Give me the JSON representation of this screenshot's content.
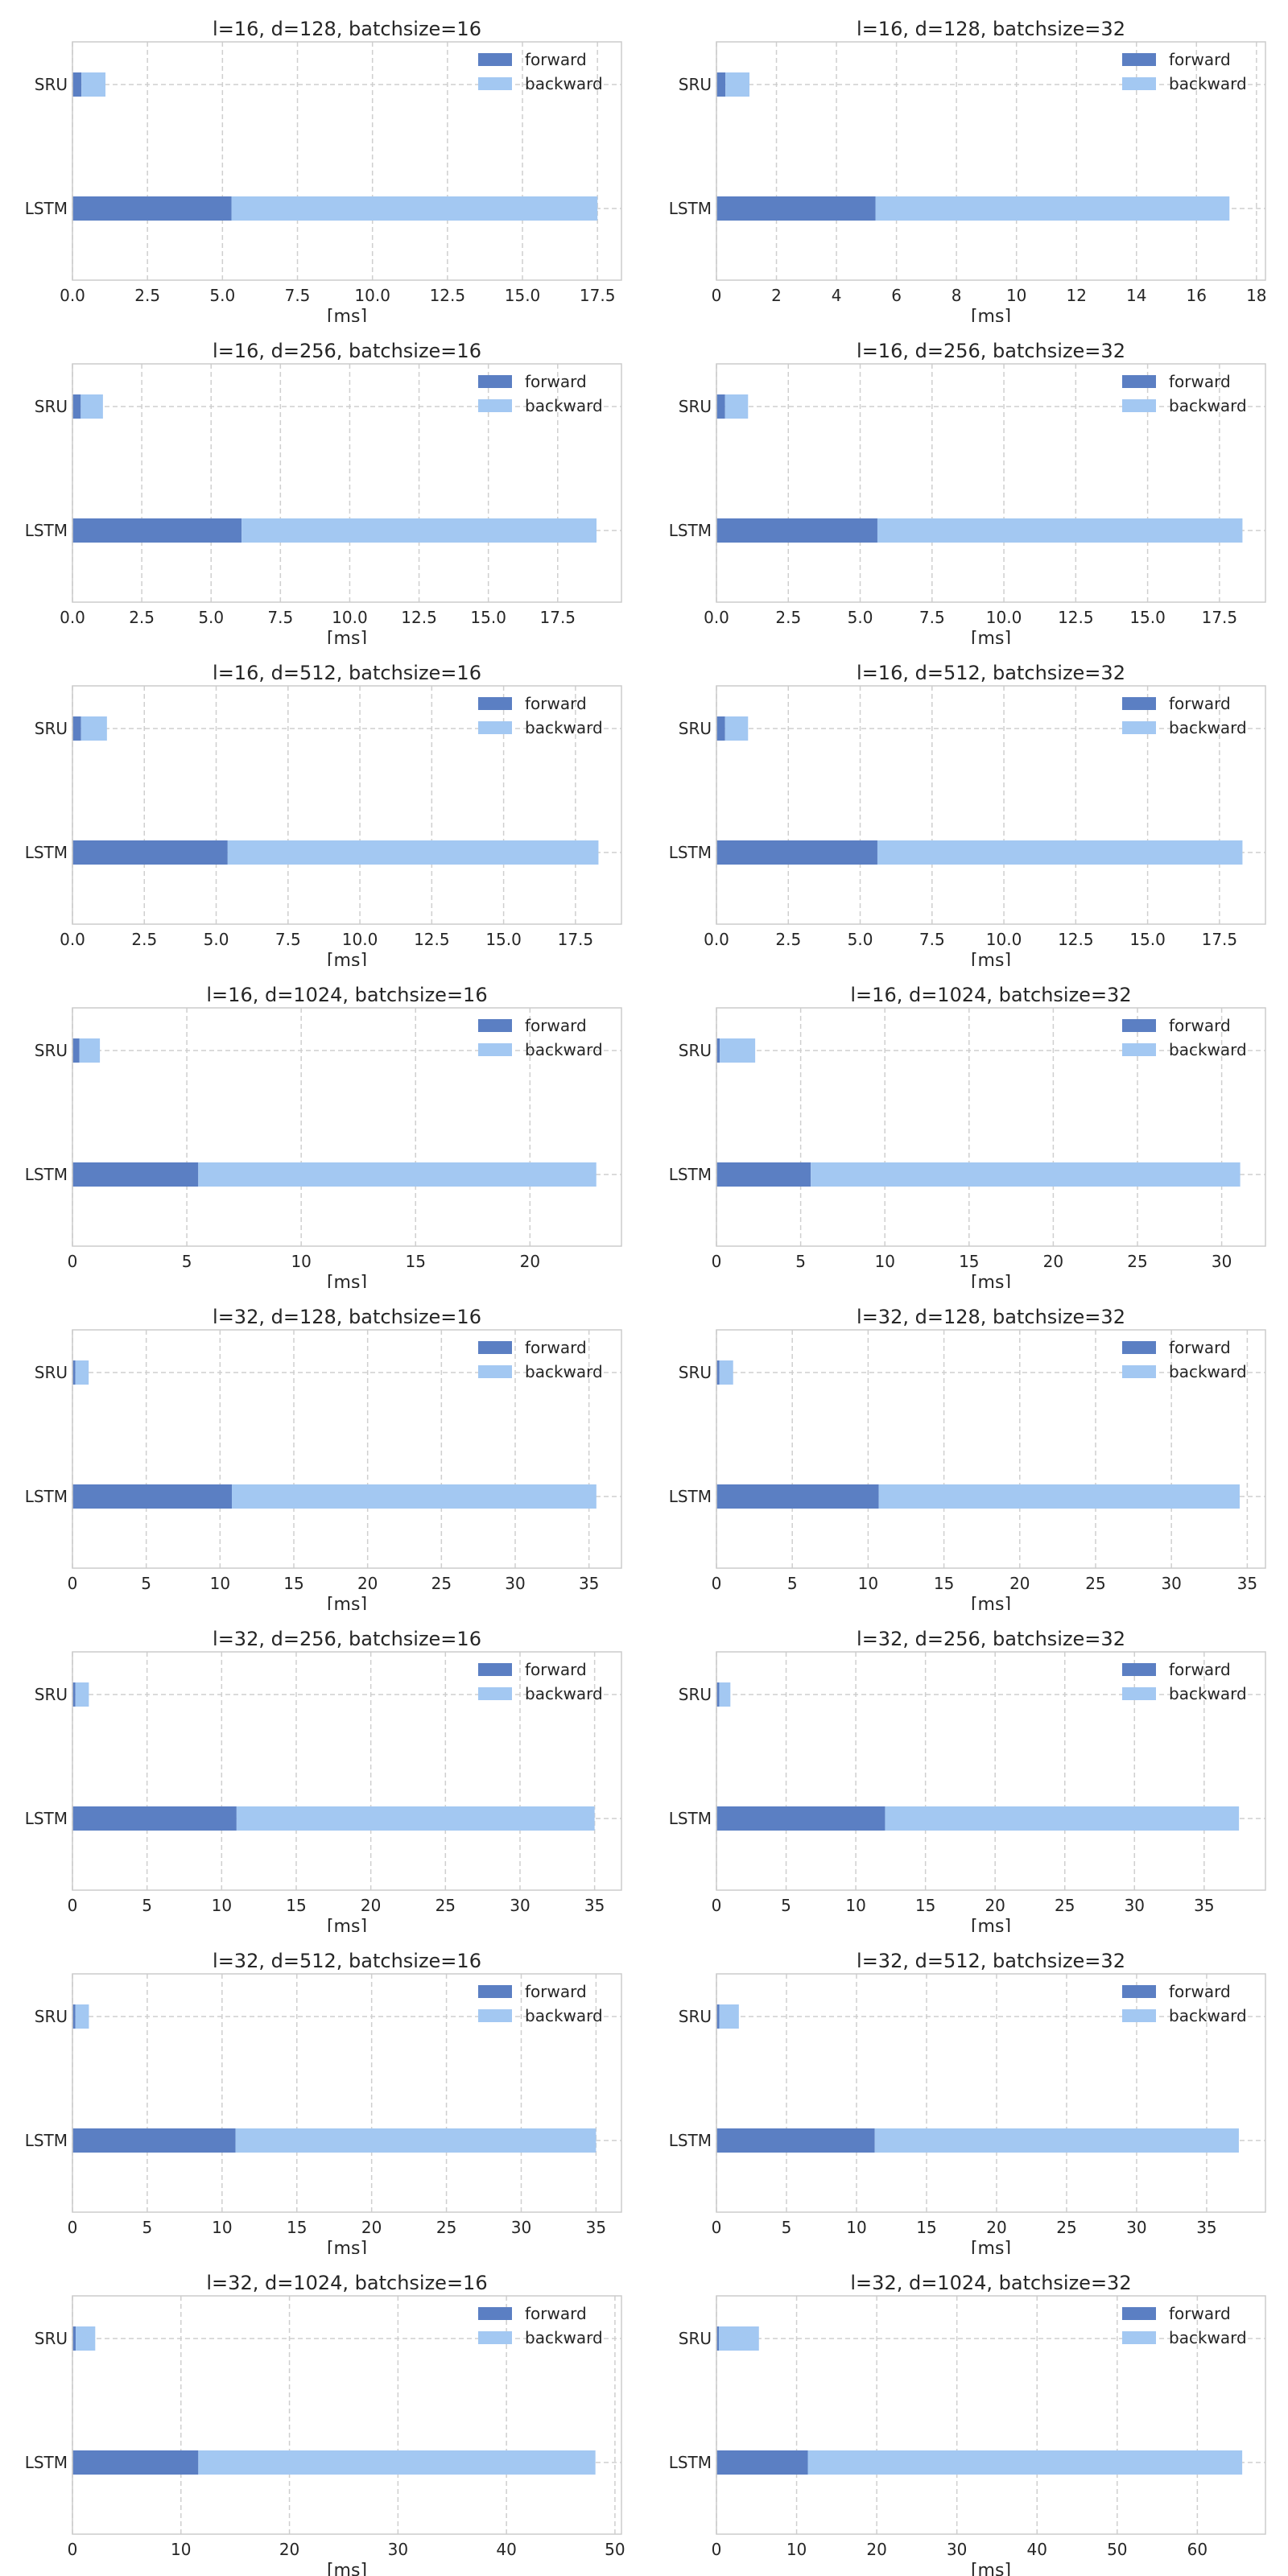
{
  "colors": {
    "forward": "#5b7fc3",
    "backward": "#a3c8f2"
  },
  "chart_data": [
    {
      "type": "bar",
      "orientation": "horizontal",
      "stacked": true,
      "title": "l=16, d=128, batchsize=16",
      "categories": [
        "SRU",
        "LSTM"
      ],
      "series": [
        {
          "name": "forward",
          "values": [
            0.3,
            5.3
          ]
        },
        {
          "name": "backward",
          "values": [
            0.8,
            12.2
          ]
        }
      ],
      "xlabel": "[ms]",
      "ticks": [
        0.0,
        2.5,
        5.0,
        7.5,
        10.0,
        12.5,
        15.0,
        17.5
      ],
      "tick_labels": [
        "0.0",
        "2.5",
        "5.0",
        "7.5",
        "10.0",
        "12.5",
        "15.0",
        "17.5"
      ],
      "xlim": [
        0,
        18.3
      ],
      "legend": "top-right"
    },
    {
      "type": "bar",
      "orientation": "horizontal",
      "stacked": true,
      "title": "l=16, d=128, batchsize=32",
      "categories": [
        "SRU",
        "LSTM"
      ],
      "series": [
        {
          "name": "forward",
          "values": [
            0.3,
            5.3
          ]
        },
        {
          "name": "backward",
          "values": [
            0.8,
            11.8
          ]
        }
      ],
      "xlabel": "[ms]",
      "ticks": [
        0,
        2,
        4,
        6,
        8,
        10,
        12,
        14,
        16,
        18
      ],
      "tick_labels": [
        "0",
        "2",
        "4",
        "6",
        "8",
        "10",
        "12",
        "14",
        "16",
        "18"
      ],
      "xlim": [
        0,
        18.3
      ],
      "legend": "top-right"
    },
    {
      "type": "bar",
      "orientation": "horizontal",
      "stacked": true,
      "title": "l=16, d=256, batchsize=16",
      "categories": [
        "SRU",
        "LSTM"
      ],
      "series": [
        {
          "name": "forward",
          "values": [
            0.3,
            6.1
          ]
        },
        {
          "name": "backward",
          "values": [
            0.8,
            12.8
          ]
        }
      ],
      "xlabel": "[ms]",
      "ticks": [
        0.0,
        2.5,
        5.0,
        7.5,
        10.0,
        12.5,
        15.0,
        17.5
      ],
      "tick_labels": [
        "0.0",
        "2.5",
        "5.0",
        "7.5",
        "10.0",
        "12.5",
        "15.0",
        "17.5"
      ],
      "xlim": [
        0,
        19.8
      ],
      "legend": "top-right"
    },
    {
      "type": "bar",
      "orientation": "horizontal",
      "stacked": true,
      "title": "l=16, d=256, batchsize=32",
      "categories": [
        "SRU",
        "LSTM"
      ],
      "series": [
        {
          "name": "forward",
          "values": [
            0.3,
            5.6
          ]
        },
        {
          "name": "backward",
          "values": [
            0.8,
            12.7
          ]
        }
      ],
      "xlabel": "[ms]",
      "ticks": [
        0.0,
        2.5,
        5.0,
        7.5,
        10.0,
        12.5,
        15.0,
        17.5
      ],
      "tick_labels": [
        "0.0",
        "2.5",
        "5.0",
        "7.5",
        "10.0",
        "12.5",
        "15.0",
        "17.5"
      ],
      "xlim": [
        0,
        19.1
      ],
      "legend": "top-right"
    },
    {
      "type": "bar",
      "orientation": "horizontal",
      "stacked": true,
      "title": "l=16, d=512, batchsize=16",
      "categories": [
        "SRU",
        "LSTM"
      ],
      "series": [
        {
          "name": "forward",
          "values": [
            0.3,
            5.4
          ]
        },
        {
          "name": "backward",
          "values": [
            0.9,
            12.9
          ]
        }
      ],
      "xlabel": "[ms]",
      "ticks": [
        0.0,
        2.5,
        5.0,
        7.5,
        10.0,
        12.5,
        15.0,
        17.5
      ],
      "tick_labels": [
        "0.0",
        "2.5",
        "5.0",
        "7.5",
        "10.0",
        "12.5",
        "15.0",
        "17.5"
      ],
      "xlim": [
        0,
        19.1
      ],
      "legend": "top-right"
    },
    {
      "type": "bar",
      "orientation": "horizontal",
      "stacked": true,
      "title": "l=16, d=512, batchsize=32",
      "categories": [
        "SRU",
        "LSTM"
      ],
      "series": [
        {
          "name": "forward",
          "values": [
            0.3,
            5.6
          ]
        },
        {
          "name": "backward",
          "values": [
            0.8,
            12.7
          ]
        }
      ],
      "xlabel": "[ms]",
      "ticks": [
        0.0,
        2.5,
        5.0,
        7.5,
        10.0,
        12.5,
        15.0,
        17.5
      ],
      "tick_labels": [
        "0.0",
        "2.5",
        "5.0",
        "7.5",
        "10.0",
        "12.5",
        "15.0",
        "17.5"
      ],
      "xlim": [
        0,
        19.1
      ],
      "legend": "top-right"
    },
    {
      "type": "bar",
      "orientation": "horizontal",
      "stacked": true,
      "title": "l=16, d=1024, batchsize=16",
      "categories": [
        "SRU",
        "LSTM"
      ],
      "series": [
        {
          "name": "forward",
          "values": [
            0.3,
            5.5
          ]
        },
        {
          "name": "backward",
          "values": [
            0.9,
            17.4
          ]
        }
      ],
      "xlabel": "[ms]",
      "ticks": [
        0,
        5,
        10,
        15,
        20
      ],
      "tick_labels": [
        "0",
        "5",
        "10",
        "15",
        "20"
      ],
      "xlim": [
        0,
        24.0
      ],
      "legend": "top-right"
    },
    {
      "type": "bar",
      "orientation": "horizontal",
      "stacked": true,
      "title": "l=16, d=1024, batchsize=32",
      "categories": [
        "SRU",
        "LSTM"
      ],
      "series": [
        {
          "name": "forward",
          "values": [
            0.2,
            5.6
          ]
        },
        {
          "name": "backward",
          "values": [
            2.1,
            25.5
          ]
        }
      ],
      "xlabel": "[ms]",
      "ticks": [
        0,
        5,
        10,
        15,
        20,
        25,
        30
      ],
      "tick_labels": [
        "0",
        "5",
        "10",
        "15",
        "20",
        "25",
        "30"
      ],
      "xlim": [
        0,
        32.6
      ],
      "legend": "top-right"
    },
    {
      "type": "bar",
      "orientation": "horizontal",
      "stacked": true,
      "title": "l=32, d=128, batchsize=16",
      "categories": [
        "SRU",
        "LSTM"
      ],
      "series": [
        {
          "name": "forward",
          "values": [
            0.2,
            10.8
          ]
        },
        {
          "name": "backward",
          "values": [
            0.9,
            24.7
          ]
        }
      ],
      "xlabel": "[ms]",
      "ticks": [
        0,
        5,
        10,
        15,
        20,
        25,
        30,
        35
      ],
      "tick_labels": [
        "0",
        "5",
        "10",
        "15",
        "20",
        "25",
        "30",
        "35"
      ],
      "xlim": [
        0,
        37.2
      ],
      "legend": "top-right"
    },
    {
      "type": "bar",
      "orientation": "horizontal",
      "stacked": true,
      "title": "l=32, d=128, batchsize=32",
      "categories": [
        "SRU",
        "LSTM"
      ],
      "series": [
        {
          "name": "forward",
          "values": [
            0.2,
            10.7
          ]
        },
        {
          "name": "backward",
          "values": [
            0.9,
            23.8
          ]
        }
      ],
      "xlabel": "[ms]",
      "ticks": [
        0,
        5,
        10,
        15,
        20,
        25,
        30,
        35
      ],
      "tick_labels": [
        "0",
        "5",
        "10",
        "15",
        "20",
        "25",
        "30",
        "35"
      ],
      "xlim": [
        0,
        36.2
      ],
      "legend": "top-right"
    },
    {
      "type": "bar",
      "orientation": "horizontal",
      "stacked": true,
      "title": "l=32, d=256, batchsize=16",
      "categories": [
        "SRU",
        "LSTM"
      ],
      "series": [
        {
          "name": "forward",
          "values": [
            0.2,
            11.0
          ]
        },
        {
          "name": "backward",
          "values": [
            0.9,
            24.0
          ]
        }
      ],
      "xlabel": "[ms]",
      "ticks": [
        0,
        5,
        10,
        15,
        20,
        25,
        30,
        35
      ],
      "tick_labels": [
        "0",
        "5",
        "10",
        "15",
        "20",
        "25",
        "30",
        "35"
      ],
      "xlim": [
        0,
        36.8
      ],
      "legend": "top-right"
    },
    {
      "type": "bar",
      "orientation": "horizontal",
      "stacked": true,
      "title": "l=32, d=256, batchsize=32",
      "categories": [
        "SRU",
        "LSTM"
      ],
      "series": [
        {
          "name": "forward",
          "values": [
            0.2,
            12.1
          ]
        },
        {
          "name": "backward",
          "values": [
            0.8,
            25.4
          ]
        }
      ],
      "xlabel": "[ms]",
      "ticks": [
        0,
        5,
        10,
        15,
        20,
        25,
        30,
        35
      ],
      "tick_labels": [
        "0",
        "5",
        "10",
        "15",
        "20",
        "25",
        "30",
        "35"
      ],
      "xlim": [
        0,
        39.4
      ],
      "legend": "top-right"
    },
    {
      "type": "bar",
      "orientation": "horizontal",
      "stacked": true,
      "title": "l=32, d=512, batchsize=16",
      "categories": [
        "SRU",
        "LSTM"
      ],
      "series": [
        {
          "name": "forward",
          "values": [
            0.2,
            10.9
          ]
        },
        {
          "name": "backward",
          "values": [
            0.9,
            24.1
          ]
        }
      ],
      "xlabel": "[ms]",
      "ticks": [
        0,
        5,
        10,
        15,
        20,
        25,
        30,
        35
      ],
      "tick_labels": [
        "0",
        "5",
        "10",
        "15",
        "20",
        "25",
        "30",
        "35"
      ],
      "xlim": [
        0,
        36.7
      ],
      "legend": "top-right"
    },
    {
      "type": "bar",
      "orientation": "horizontal",
      "stacked": true,
      "title": "l=32, d=512, batchsize=32",
      "categories": [
        "SRU",
        "LSTM"
      ],
      "series": [
        {
          "name": "forward",
          "values": [
            0.2,
            11.3
          ]
        },
        {
          "name": "backward",
          "values": [
            1.4,
            26.0
          ]
        }
      ],
      "xlabel": "[ms]",
      "ticks": [
        0,
        5,
        10,
        15,
        20,
        25,
        30,
        35
      ],
      "tick_labels": [
        "0",
        "5",
        "10",
        "15",
        "20",
        "25",
        "30",
        "35"
      ],
      "xlim": [
        0,
        39.2
      ],
      "legend": "top-right"
    },
    {
      "type": "bar",
      "orientation": "horizontal",
      "stacked": true,
      "title": "l=32, d=1024, batchsize=16",
      "categories": [
        "SRU",
        "LSTM"
      ],
      "series": [
        {
          "name": "forward",
          "values": [
            0.3,
            11.6
          ]
        },
        {
          "name": "backward",
          "values": [
            1.8,
            36.6
          ]
        }
      ],
      "xlabel": "[ms]",
      "ticks": [
        0,
        10,
        20,
        30,
        40,
        50
      ],
      "tick_labels": [
        "0",
        "10",
        "20",
        "30",
        "40",
        "50"
      ],
      "xlim": [
        0,
        50.6
      ],
      "legend": "top-right"
    },
    {
      "type": "bar",
      "orientation": "horizontal",
      "stacked": true,
      "title": "l=32, d=1024, batchsize=32",
      "categories": [
        "SRU",
        "LSTM"
      ],
      "series": [
        {
          "name": "forward",
          "values": [
            0.3,
            11.4
          ]
        },
        {
          "name": "backward",
          "values": [
            5.0,
            54.2
          ]
        }
      ],
      "xlabel": "[ms]",
      "ticks": [
        0,
        10,
        20,
        30,
        40,
        50,
        60
      ],
      "tick_labels": [
        "0",
        "10",
        "20",
        "30",
        "40",
        "50",
        "60"
      ],
      "xlim": [
        0,
        68.5
      ],
      "legend": "top-right"
    }
  ]
}
